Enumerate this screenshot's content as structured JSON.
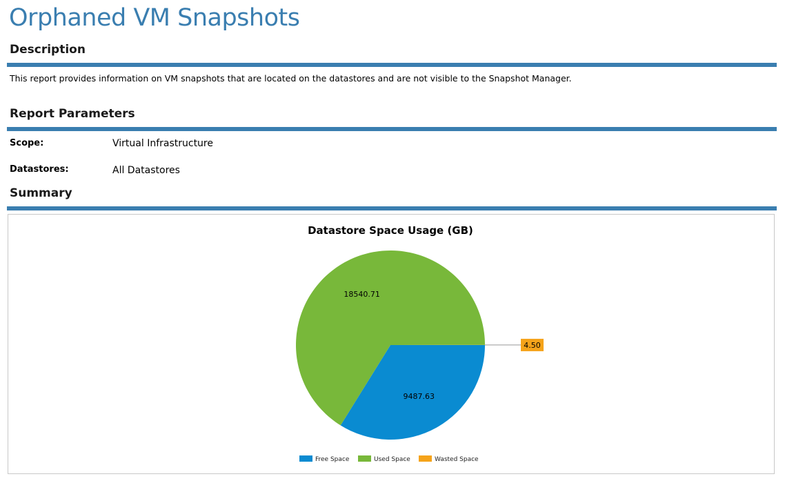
{
  "report": {
    "title": "Orphaned VM Snapshots",
    "description_heading": "Description",
    "description": "This report provides information on VM snapshots that are located on the datastores and are not visible to the Snapshot Manager.",
    "parameters_heading": "Report Parameters",
    "parameters": [
      {
        "label": "Scope:",
        "value": "Virtual Infrastructure"
      },
      {
        "label": "Datastores:",
        "value": "All Datastores"
      }
    ],
    "summary_heading": "Summary"
  },
  "colors": {
    "accent": "#3a7eb0",
    "free": "#0a8bd1",
    "used": "#78b83a",
    "wasted": "#f5a31a"
  },
  "chart_data": {
    "type": "pie",
    "title": "Datastore Space Usage (GB)",
    "slices": [
      {
        "name": "Free Space",
        "value": 9487.63,
        "label": "9487.63",
        "color": "#0a8bd1"
      },
      {
        "name": "Used Space",
        "value": 18540.71,
        "label": "18540.71",
        "color": "#78b83a"
      },
      {
        "name": "Wasted Space",
        "value": 4.5,
        "label": "4.50",
        "color": "#f5a31a"
      }
    ],
    "legend_position": "bottom"
  }
}
